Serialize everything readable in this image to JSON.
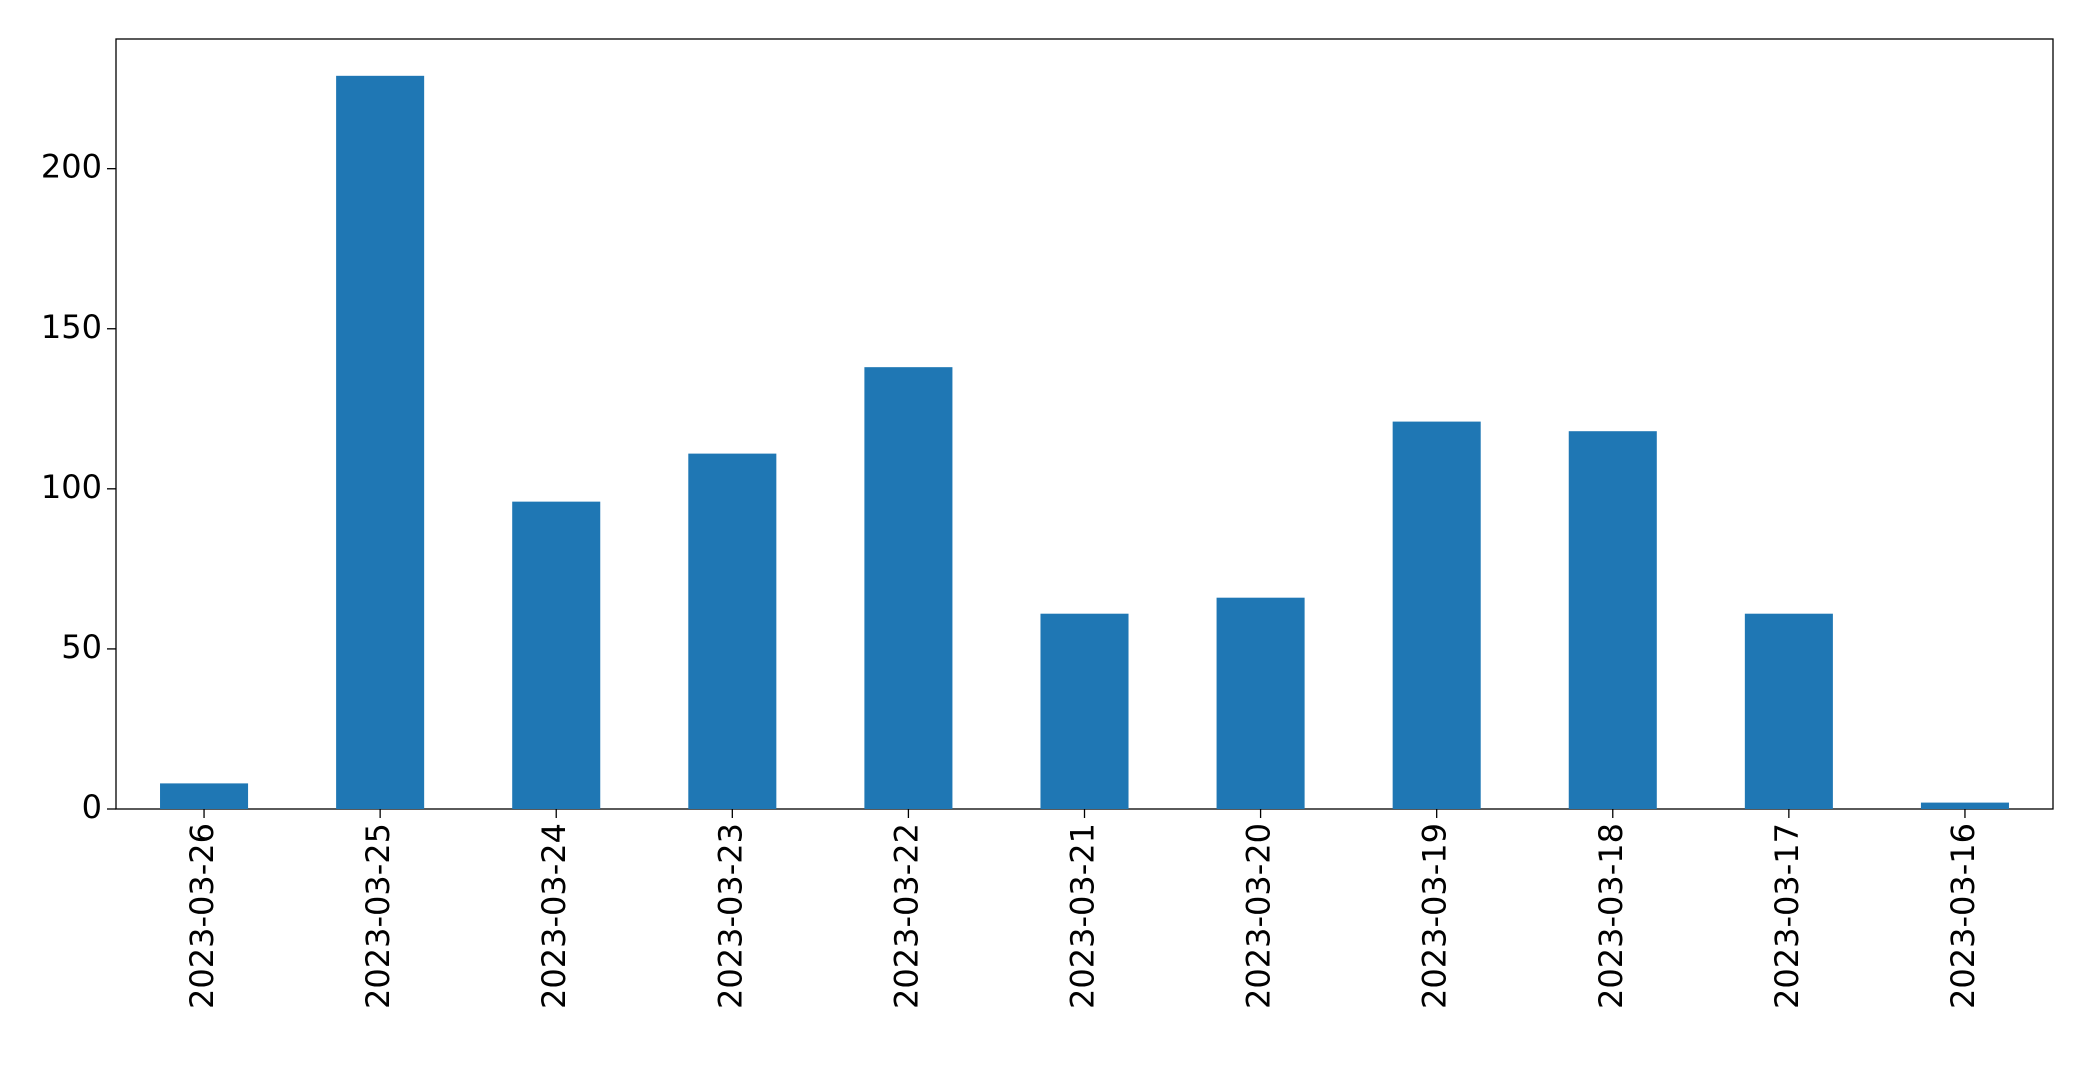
{
  "chart_data": {
    "type": "bar",
    "categories": [
      "2023-03-26",
      "2023-03-25",
      "2023-03-24",
      "2023-03-23",
      "2023-03-22",
      "2023-03-21",
      "2023-03-20",
      "2023-03-19",
      "2023-03-18",
      "2023-03-17",
      "2023-03-16"
    ],
    "values": [
      8,
      229,
      96,
      111,
      138,
      61,
      66,
      121,
      118,
      61,
      2
    ],
    "color": "#1f77b4",
    "ylim": [
      0,
      240.5
    ],
    "yticks": [
      0,
      50,
      100,
      150,
      200
    ],
    "grid": false
  }
}
